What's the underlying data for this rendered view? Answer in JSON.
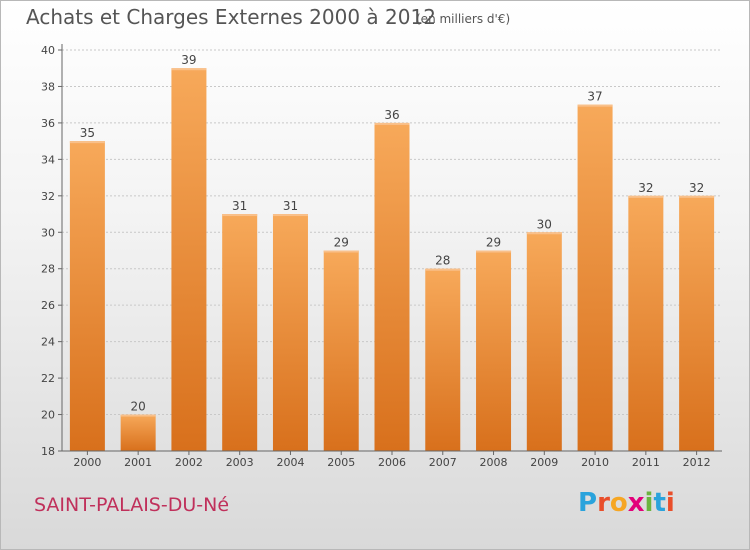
{
  "header": {
    "title": "Achats et Charges Externes 2000 à 2012",
    "subtitle": "(en milliers d'€)"
  },
  "footer": {
    "city": "SAINT-PALAIS-DU-Né",
    "logo_letters": [
      "P",
      "r",
      "o",
      "x",
      "i",
      "t",
      "i"
    ],
    "logo_colors": [
      "#2aa3dc",
      "#e94e2a",
      "#f6a623",
      "#e2007a",
      "#6bb43f",
      "#2aa3dc",
      "#e94e2a"
    ]
  },
  "colors": {
    "bar_top": "#f7a95a",
    "bar_bottom": "#d8701c",
    "title": "#555555",
    "city": "#c0305b"
  },
  "chart_data": {
    "type": "bar",
    "categories": [
      "2000",
      "2001",
      "2002",
      "2003",
      "2004",
      "2005",
      "2006",
      "2007",
      "2008",
      "2009",
      "2010",
      "2011",
      "2012"
    ],
    "values": [
      35,
      20,
      39,
      31,
      31,
      29,
      36,
      28,
      29,
      30,
      37,
      32,
      32
    ],
    "title": "Achats et Charges Externes 2000 à 2012",
    "ylim": [
      18,
      40
    ],
    "yticks": [
      18,
      20,
      22,
      24,
      26,
      28,
      30,
      32,
      34,
      36,
      38,
      40
    ],
    "grid": true
  }
}
